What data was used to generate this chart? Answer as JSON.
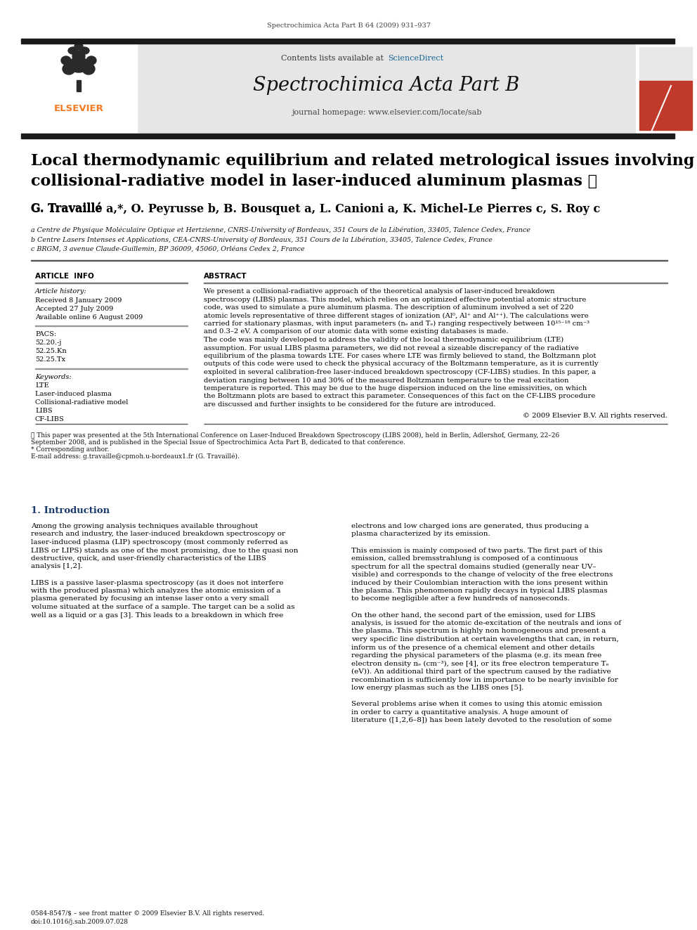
{
  "bg_color": "#ffffff",
  "header_journal_ref": "Spectrochimica Acta Part B 64 (2009) 931–937",
  "journal_header_bg": "#e6e6e6",
  "journal_name": "Spectrochimica Acta Part B",
  "journal_url": "journal homepage: www.elsevier.com/locate/sab",
  "contents_text": "Contents lists available at ",
  "sciencedirect_text": "ScienceDirect",
  "sciencedirect_color": "#1a6496",
  "top_bar_color": "#1a1a1a",
  "title_line1": "Local thermodynamic equilibrium and related metrological issues involving",
  "title_line2": "collisional-radiative model in laser-induced aluminum plasmas",
  "title_star": "☆",
  "title_color": "#000000",
  "title_fontsize": 16.0,
  "authors_line": "G. Travillé a,*, O. Peyrusse b, B. Bousquet a, L. Canioni a, K. Michel-Le Pierres c, S. Roy c",
  "authors_fontsize": 11.5,
  "affils": [
    "ᵇ Centre de Physique Moléculaire Optique et Hertzienne, CNRS-University of Bordeaux, 351 Cours de la Libération, 33405, Talence Cedex, France",
    "ᵇ Centre Lasers Intenses et Applications, CEA-CNRS-University of Bordeaux, 351 Cours de la Libération, 33405, Talence Cedex, France",
    "ᶜ BRGM, 3 avenue Claude-Guillemin, BP 36009, 45060, Orléans Cedex 2, France"
  ],
  "affil_prefixes": [
    "a",
    "b",
    "c"
  ],
  "pacs_codes": [
    "52.20.-j",
    "52.25.Kn",
    "52.25.Tx"
  ],
  "keywords": [
    "LTE",
    "Laser-induced plasma",
    "Collisional-radiative model",
    "LIBS",
    "CF-LIBS"
  ],
  "abstract_lines": [
    "We present a collisional-radiative approach of the theoretical analysis of laser-induced breakdown",
    "spectroscopy (LIBS) plasmas. This model, which relies on an optimized effective potential atomic structure",
    "code, was used to simulate a pure aluminum plasma. The description of aluminum involved a set of 220",
    "atomic levels representative of three different stages of ionization (Al⁰, Al⁺ and Al⁺⁺). The calculations were",
    "carried for stationary plasmas, with input parameters (nₑ and Tₑ) ranging respectively between 10¹⁵⁻¹⁸ cm⁻³",
    "and 0.3–2 eV. A comparison of our atomic data with some existing databases is made.",
    "The code was mainly developed to address the validity of the local thermodynamic equilibrium (LTE)",
    "assumption. For usual LIBS plasma parameters, we did not reveal a sizeable discrepancy of the radiative",
    "equilibrium of the plasma towards LTE. For cases where LTE was firmly believed to stand, the Boltzmann plot",
    "outputs of this code were used to check the physical accuracy of the Boltzmann temperature, as it is currently",
    "exploited in several calibration-free laser-induced breakdown spectroscopy (CF-LIBS) studies. In this paper, a",
    "deviation ranging between 10 and 30% of the measured Boltzmann temperature to the real excitation",
    "temperature is reported. This may be due to the huge dispersion induced on the line emissivities, on which",
    "the Boltzmann plots are based to extract this parameter. Consequences of this fact on the CF-LIBS procedure",
    "are discussed and further insights to be considered for the future are introduced."
  ],
  "copyright_text": "© 2009 Elsevier B.V. All rights reserved.",
  "intro_col1_lines": [
    "Among the growing analysis techniques available throughout",
    "research and industry, the laser-induced breakdown spectroscopy or",
    "laser-induced plasma (LIP) spectroscopy (most commonly referred as",
    "LIBS or LIPS) stands as one of the most promising, due to the quasi non",
    "destructive, quick, and user-friendly characteristics of the LIBS",
    "analysis [1,2].",
    "",
    "LIBS is a passive laser-plasma spectroscopy (as it does not interfere",
    "with the produced plasma) which analyzes the atomic emission of a",
    "plasma generated by focusing an intense laser onto a very small",
    "volume situated at the surface of a sample. The target can be a solid as",
    "well as a liquid or a gas [3]. This leads to a breakdown in which free"
  ],
  "intro_col2_lines": [
    "electrons and low charged ions are generated, thus producing a",
    "plasma characterized by its emission.",
    "",
    "This emission is mainly composed of two parts. The first part of this",
    "emission, called bremsstrahlung is composed of a continuous",
    "spectrum for all the spectral domains studied (generally near UV–",
    "visible) and corresponds to the change of velocity of the free electrons",
    "induced by their Coulombian interaction with the ions present within",
    "the plasma. This phenomenon rapidly decays in typical LIBS plasmas",
    "to become negligible after a few hundreds of nanoseconds.",
    "",
    "On the other hand, the second part of the emission, used for LIBS",
    "analysis, is issued for the atomic de-excitation of the neutrals and ions of",
    "the plasma. This spectrum is highly non homogeneous and present a",
    "very specific line distribution at certain wavelengths that can, in return,",
    "inform us of the presence of a chemical element and other details",
    "regarding the physical parameters of the plasma (e.g. its mean free",
    "electron density nₑ (cm⁻³), see [4], or its free electron temperature Tₑ",
    "(eV)). An additional third part of the spectrum caused by the radiative",
    "recombination is sufficiently low in importance to be nearly invisible for",
    "low energy plasmas such as the LIBS ones [5].",
    "",
    "Several problems arise when it comes to using this atomic emission",
    "in order to carry a quantitative analysis. A huge amount of",
    "literature ([1,2,6–8]) has been lately devoted to the resolution of some"
  ],
  "footnote_lines": [
    "☆ This paper was presented at the 5th International Conference on Laser-Induced Breakdown Spectroscopy (LIBS 2008), held in Berlin, Adlershof, Germany, 22–26",
    "September 2008, and is published in the Special Issue of Spectrochimica Acta Part B, dedicated to that conference.",
    "* Corresponding author.",
    "E-mail address: g.travaille@cpmoh.u-bordeaux1.fr (G. Travillé)."
  ],
  "issn_text": "0584-8547/$ – see front matter © 2009 Elsevier B.V. All rights reserved.",
  "doi_text": "doi:10.1016/j.sab.2009.07.028",
  "elsevier_orange": "#f47920",
  "red_cover_top": "#c0392b",
  "red_cover_bot": "#a93226"
}
